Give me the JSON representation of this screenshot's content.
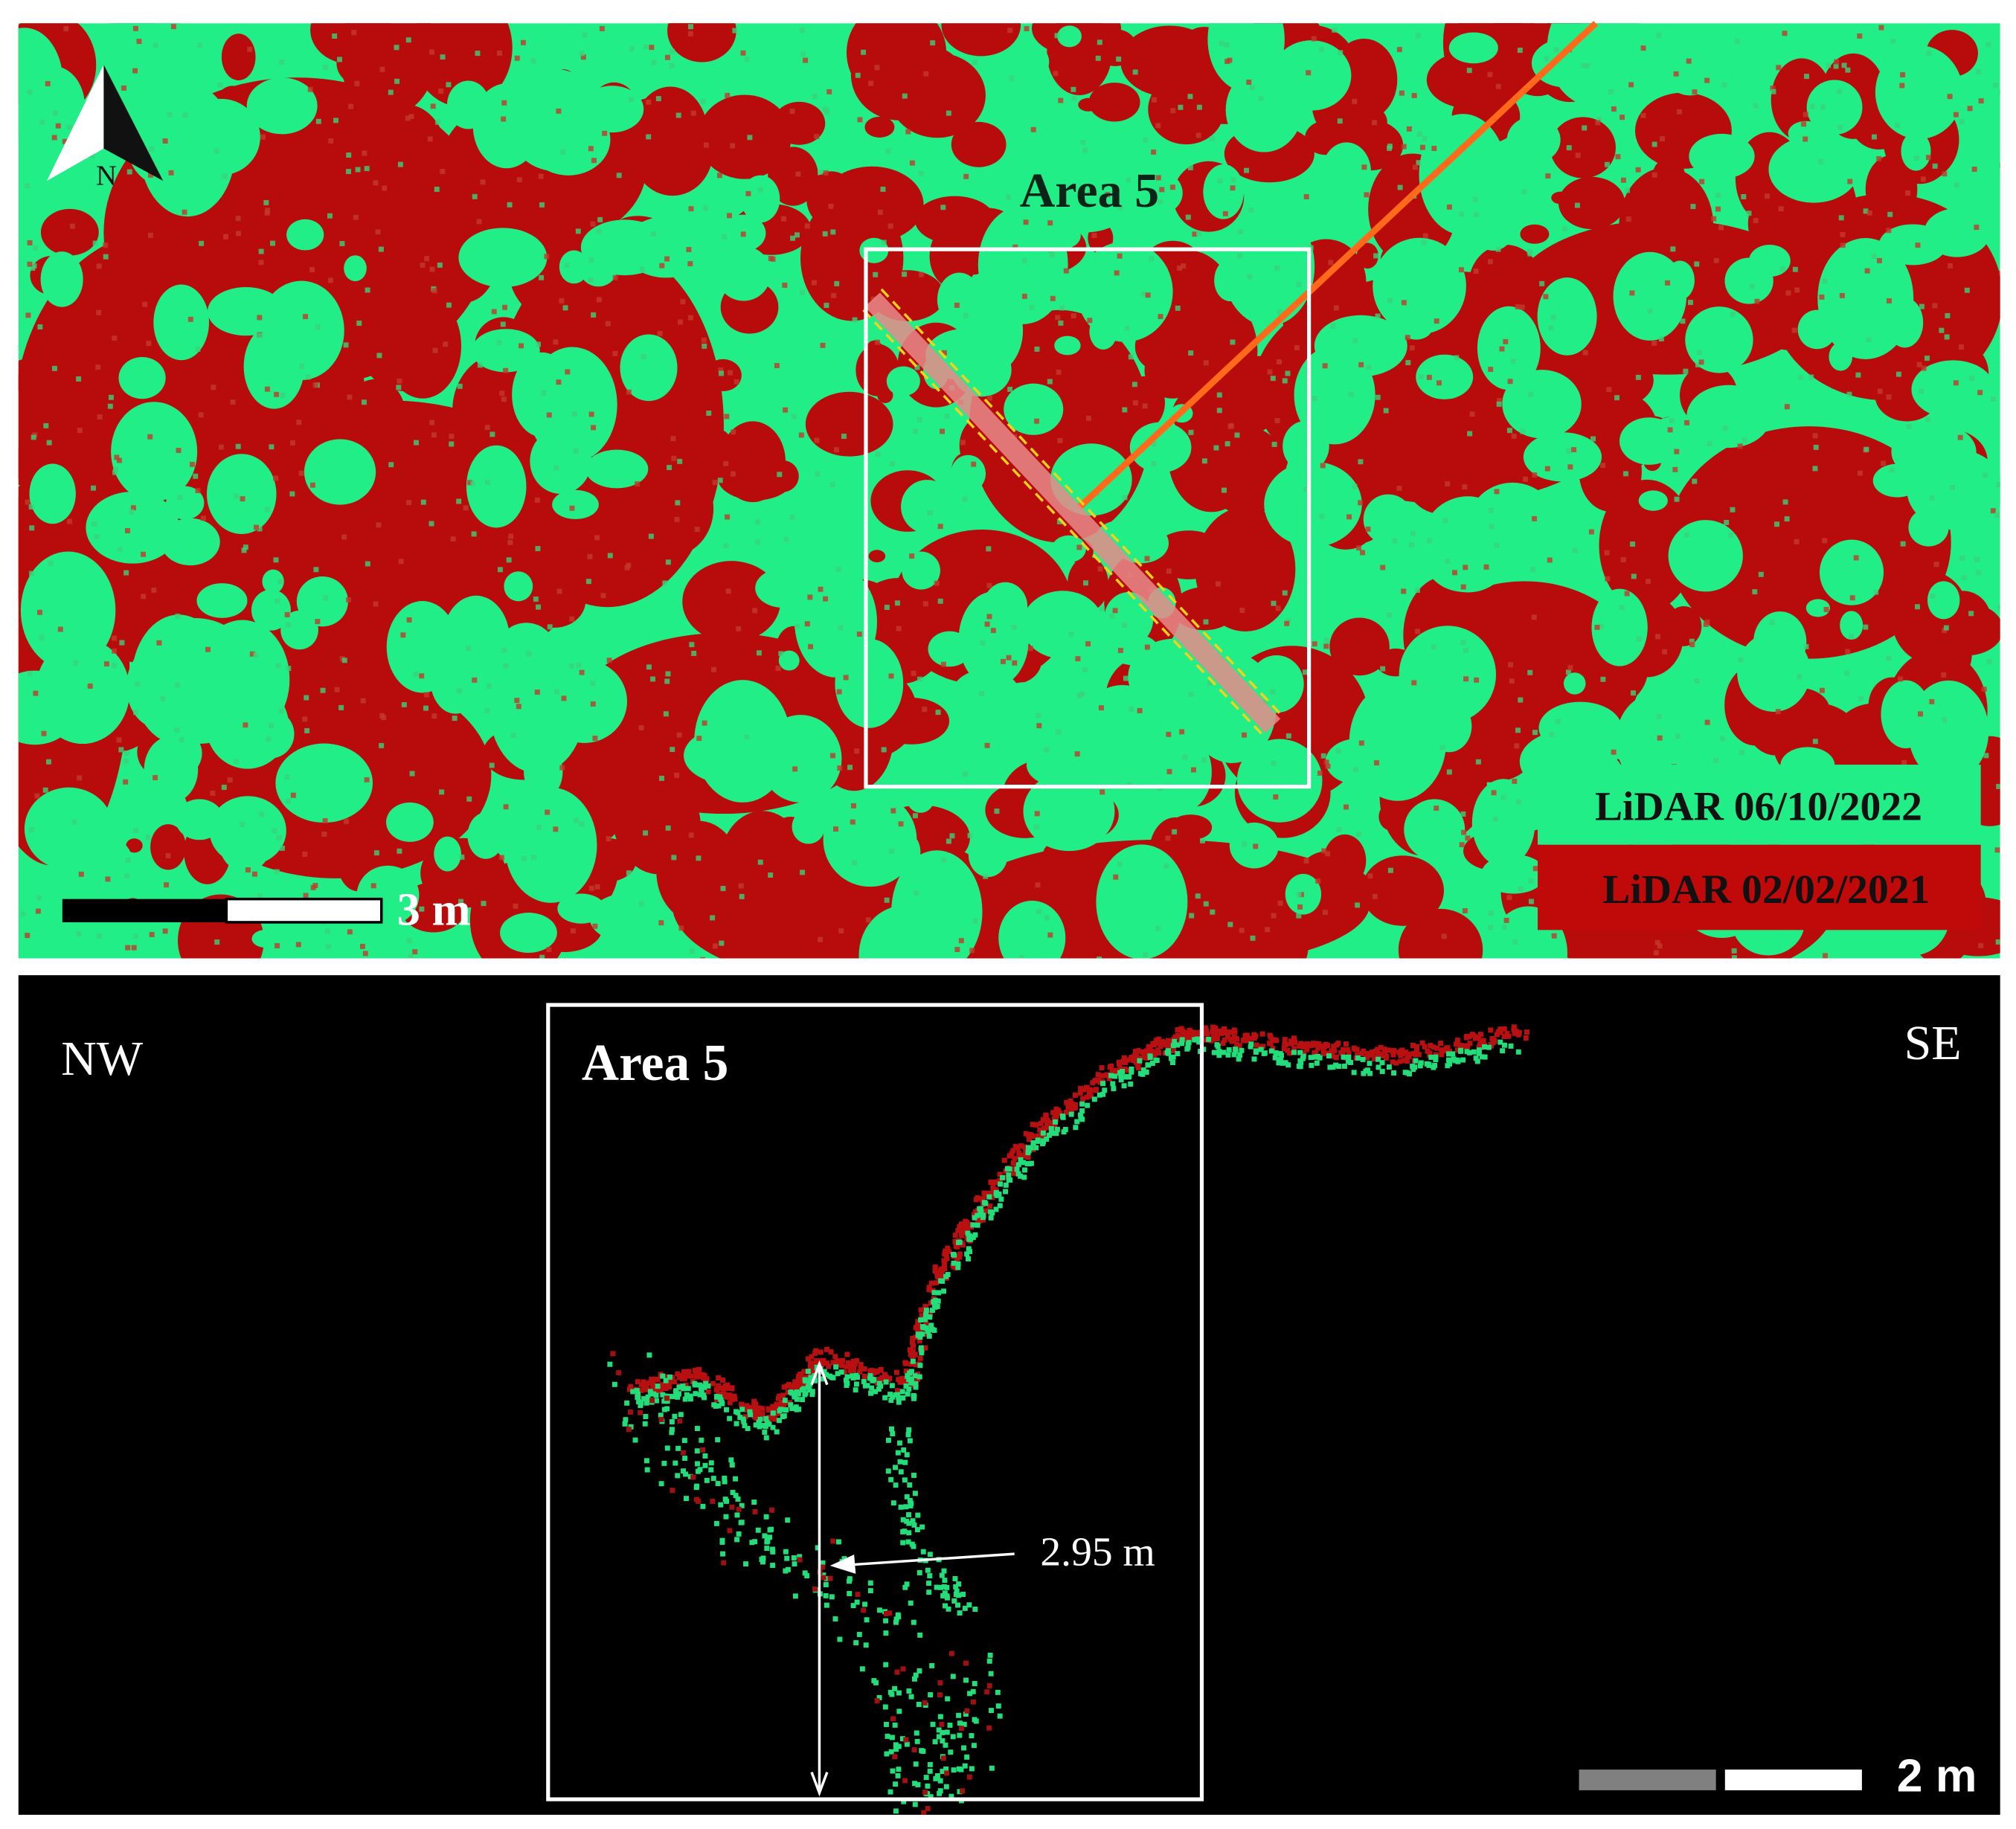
{
  "top_panel": {
    "title": "Area 5",
    "north_label": "N",
    "scale_label": "3 m",
    "legend": [
      {
        "label": "LiDAR 06/10/2022"
      },
      {
        "label": "LiDAR 02/02/2021"
      }
    ]
  },
  "bottom_panel": {
    "left_label": "NW",
    "title": "Area 5",
    "right_label": "SE",
    "measurement": "2.95 m",
    "scale_label": "2 m"
  }
}
